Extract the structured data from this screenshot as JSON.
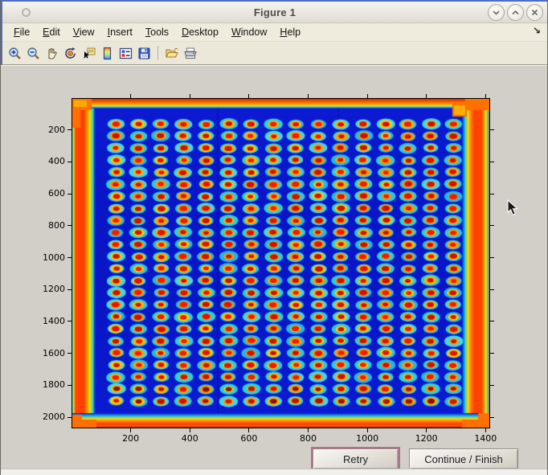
{
  "window": {
    "title": "Figure 1",
    "controls": [
      "shade-window",
      "unshade-window",
      "close-window"
    ]
  },
  "menubar": {
    "items": [
      {
        "label": "File"
      },
      {
        "label": "Edit"
      },
      {
        "label": "View"
      },
      {
        "label": "Insert"
      },
      {
        "label": "Tools"
      },
      {
        "label": "Desktop"
      },
      {
        "label": "Window"
      },
      {
        "label": "Help"
      }
    ],
    "dock_arrow_glyph": "↘"
  },
  "toolbar": {
    "tools": [
      "zoom-in",
      "zoom-out",
      "pan",
      "rotate-3d",
      "data-cursor",
      "insert-colorbar",
      "insert-legend",
      "save-figure",
      "open-file",
      "print-figure"
    ]
  },
  "chart_data": {
    "type": "heatmap",
    "title": "",
    "xlabel": "",
    "ylabel": "",
    "colormap": "jet",
    "description": "Thermal (jet colormap) image of a 384-well microplate: 24 rows x 16 columns of hot wells (red cores, orange-yellow rings, cyan halos) on a dark blue background; plate rim glows red-orange with cyan fringe; bottom two rows have darker maroon cores",
    "x_range": [
      0,
      1410
    ],
    "y_range": [
      0,
      2060
    ],
    "x_ticks": [
      200,
      400,
      600,
      800,
      1000,
      1200,
      1400
    ],
    "y_ticks": [
      200,
      400,
      600,
      800,
      1000,
      1200,
      1400,
      1600,
      1800,
      2000
    ],
    "grid": {
      "rows": 24,
      "cols": 16,
      "first_center_x": 148,
      "first_center_y": 158,
      "pitch_x": 76,
      "pitch_y": 75.5
    },
    "colors": {
      "background": "#0a18cf",
      "halo_cyan": [
        "#2cc8ea",
        "#25d2e2",
        "#3fd8ee",
        "#1fb9ee"
      ],
      "ring_orange": [
        "#ffb400",
        "#ff9800",
        "#ffc800",
        "#ffa000"
      ],
      "core_red": [
        "#e01400",
        "#d01000",
        "#f01c00",
        "#c81400"
      ],
      "core_dark": [
        "#a01200",
        "#8c1000",
        "#b41800"
      ],
      "edge_hot": "#ff3c00",
      "edge_warm": "#ff9000",
      "edge_yellow": "#ffd800",
      "edge_cyan": "#1cc8e0"
    },
    "seed": 11
  },
  "action_buttons": [
    {
      "label": "Retry",
      "focused": true
    },
    {
      "label": "Continue / Finish",
      "focused": false
    }
  ]
}
